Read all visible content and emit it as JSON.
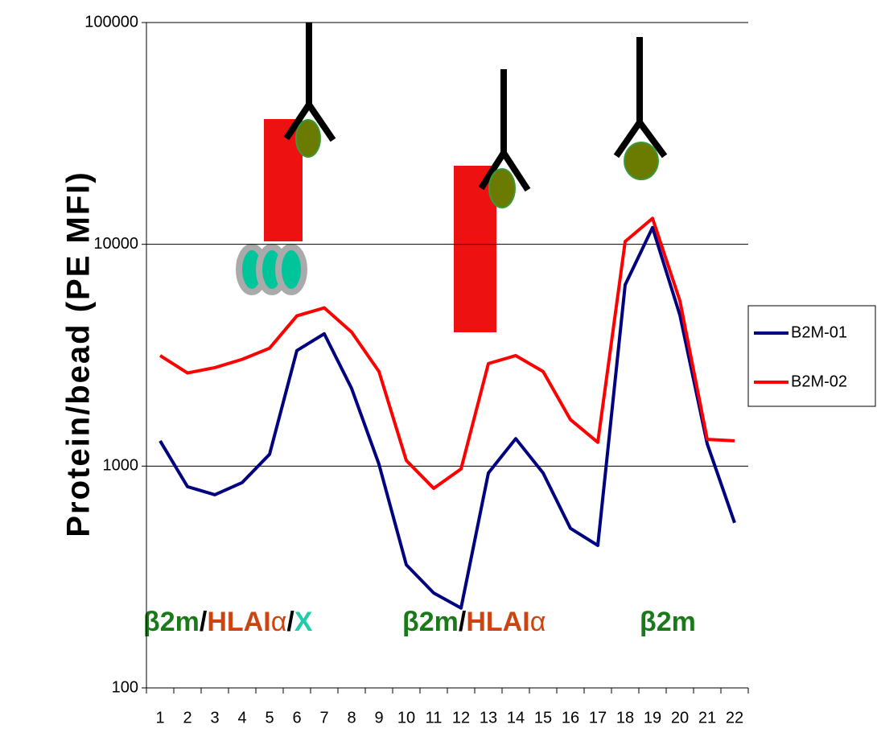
{
  "chart_data": {
    "type": "line",
    "y_label": "Protein/bead (PE MFI)",
    "categories": [
      "1",
      "2",
      "3",
      "4",
      "5",
      "6",
      "7",
      "8",
      "9",
      "10",
      "11",
      "12",
      "13",
      "14",
      "15",
      "16",
      "17",
      "18",
      "19",
      "20",
      "21",
      "22"
    ],
    "series": [
      {
        "name": "B2M-01",
        "color": "#000080",
        "values": [
          1300,
          808,
          743,
          843,
          1130,
          3320,
          3950,
          2240,
          1020,
          359,
          268,
          229,
          931,
          1330,
          931,
          524,
          439,
          6570,
          11900,
          4800,
          1260,
          555
        ]
      },
      {
        "name": "B2M-02",
        "color": "#ff0000",
        "values": [
          3150,
          2630,
          2780,
          3030,
          3400,
          4760,
          5170,
          4020,
          2670,
          1060,
          794,
          971,
          2900,
          3150,
          2670,
          1620,
          1280,
          10300,
          13100,
          5570,
          1320,
          1300
        ]
      }
    ],
    "ylim": [
      100,
      100000
    ],
    "yticks": [
      100,
      1000,
      10000,
      100000
    ],
    "log_y": true,
    "grid": true,
    "legend": "right",
    "annotations": [
      {
        "parts": [
          "β2m",
          "/",
          "HLAI",
          "α",
          "/",
          "X"
        ]
      },
      {
        "parts": [
          "β2m",
          "/",
          "HLAI",
          "α"
        ]
      },
      {
        "parts": [
          "β2m"
        ]
      }
    ]
  }
}
